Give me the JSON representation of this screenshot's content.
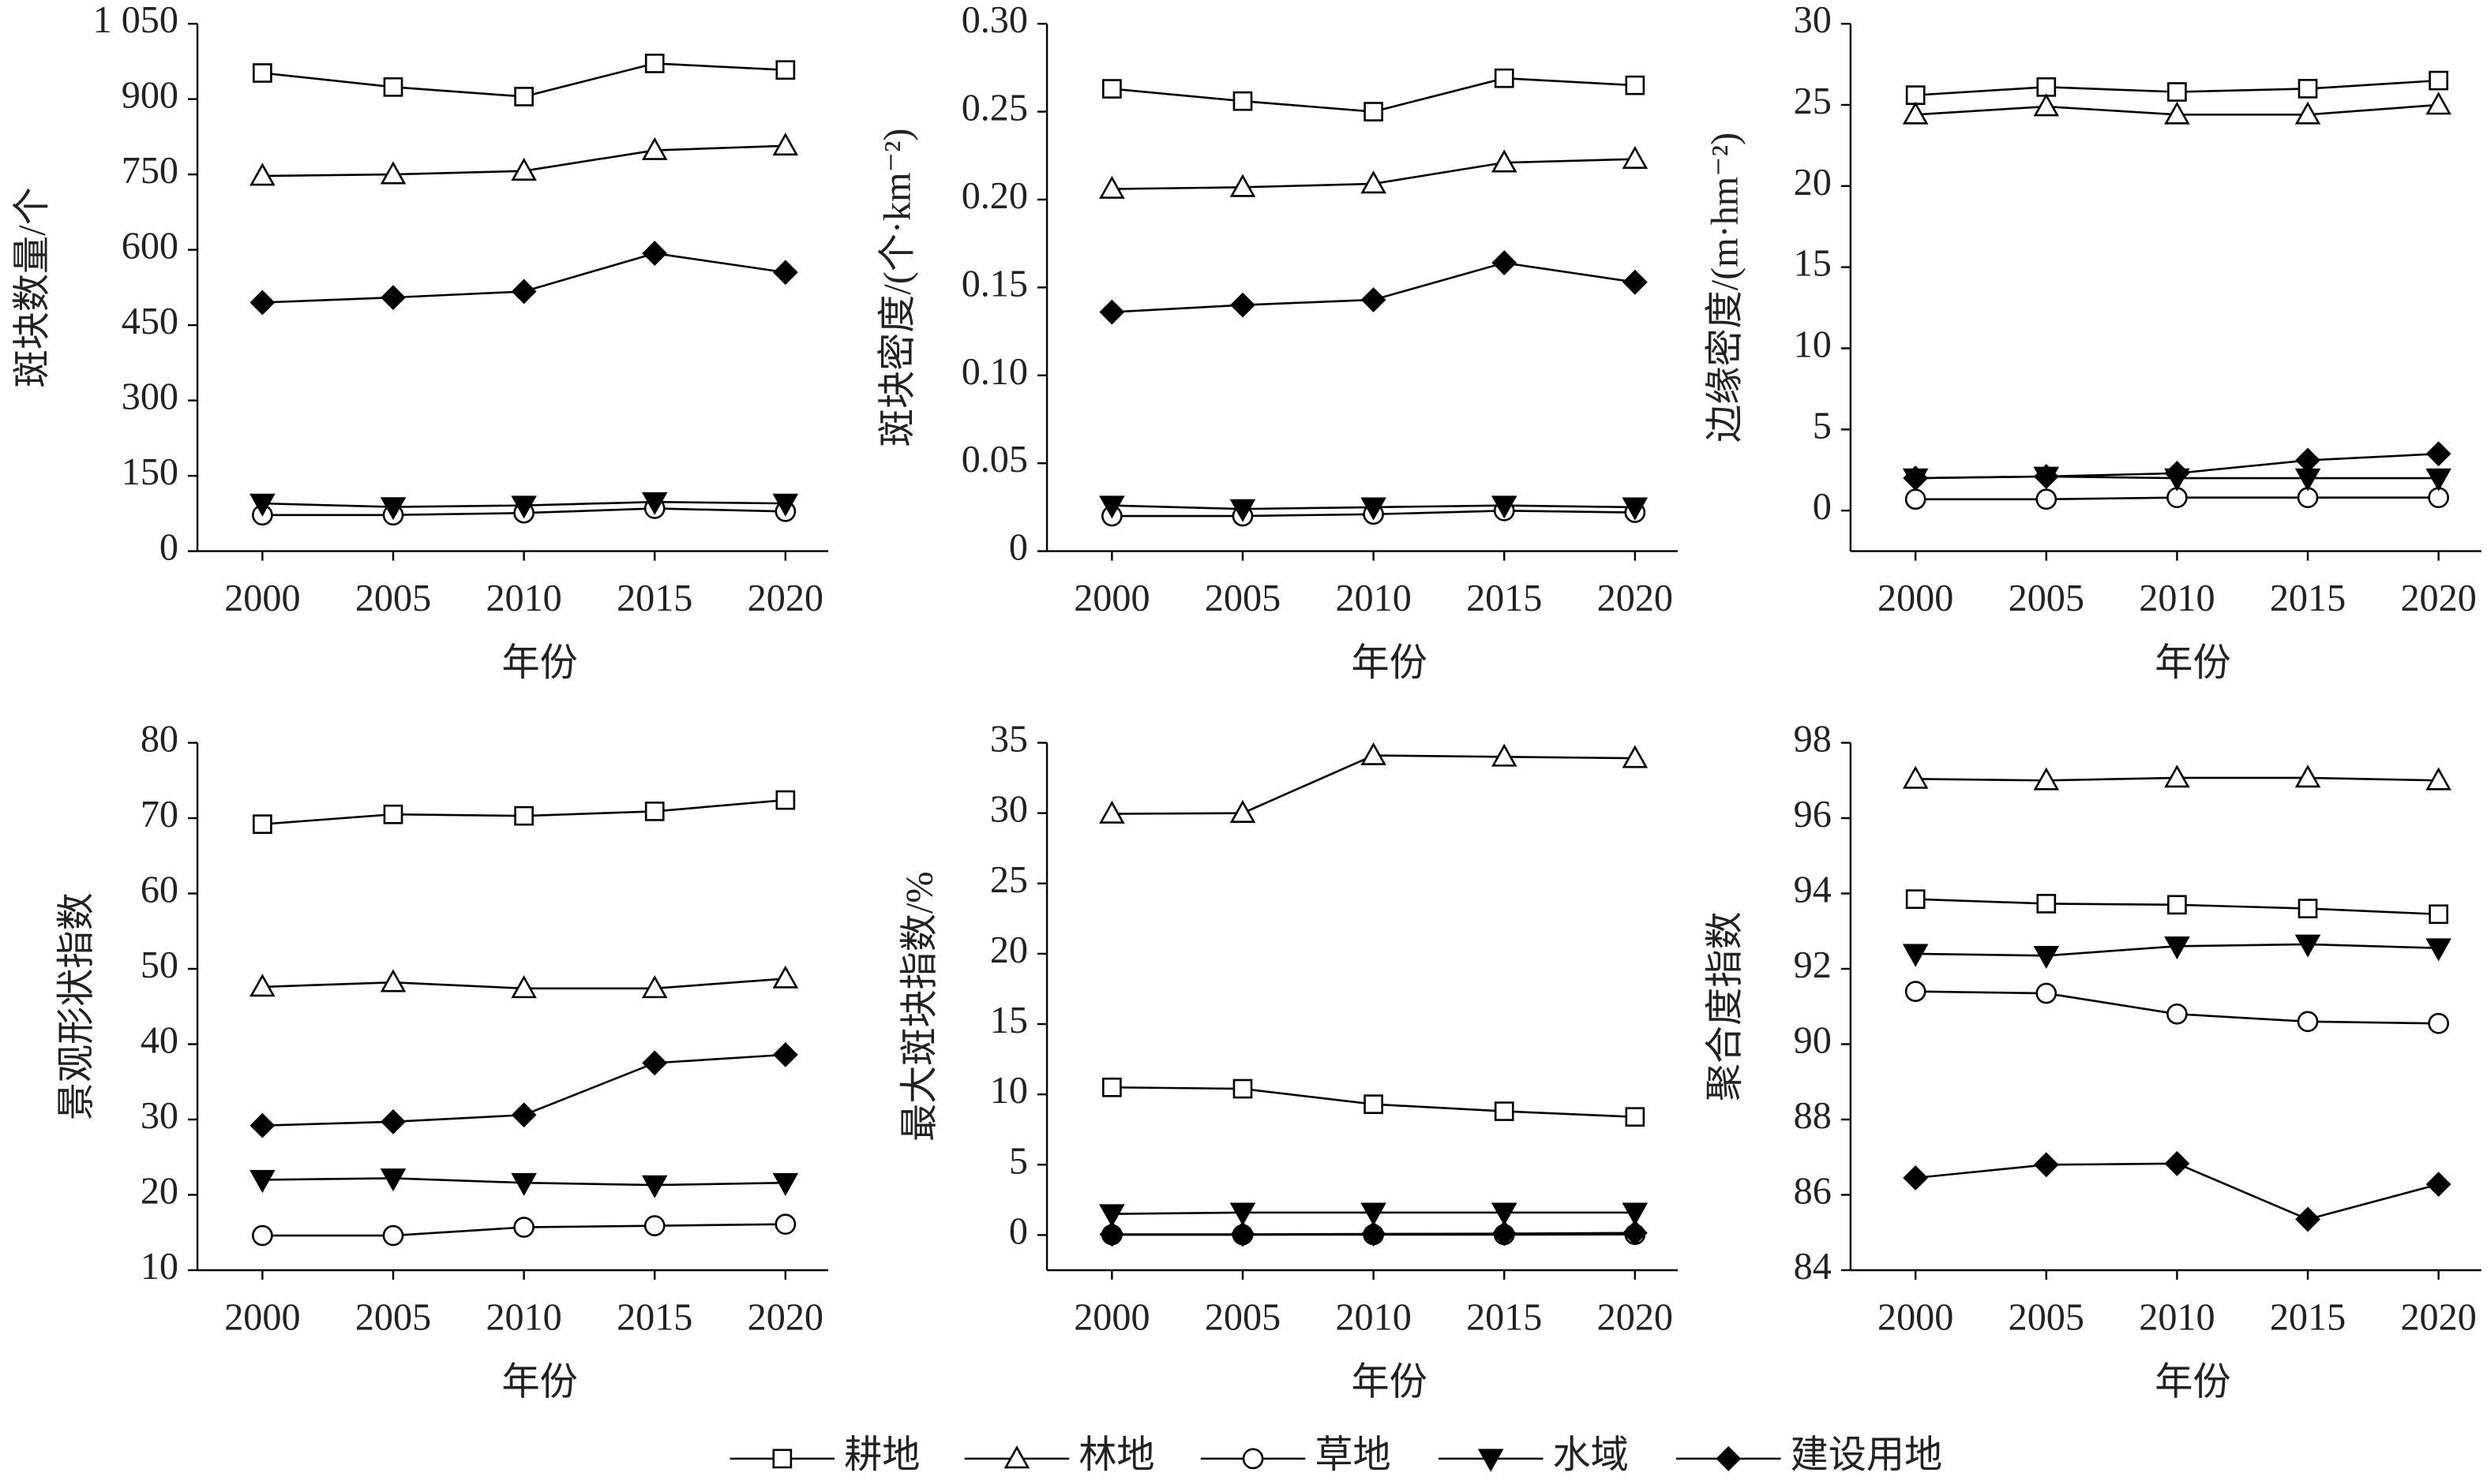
{
  "chart_data": [
    {
      "type": "line",
      "ylabel": "斑块数量/个",
      "xlabel": "年份",
      "categories": [
        "2000",
        "2005",
        "2010",
        "2015",
        "2020"
      ],
      "ylim": [
        0,
        1050
      ],
      "yticks": [
        0,
        150,
        300,
        450,
        600,
        750,
        900,
        {
          "value": 1050,
          "label": "1 050"
        }
      ],
      "series": [
        {
          "values": [
            952,
            924,
            905,
            971,
            958
          ]
        },
        {
          "values": [
            747,
            750,
            757,
            798,
            807
          ]
        },
        {
          "values": [
            72,
            72,
            76,
            85,
            79
          ]
        },
        {
          "values": [
            95,
            88,
            91,
            98,
            95
          ]
        },
        {
          "values": [
            495,
            505,
            517,
            593,
            555
          ]
        }
      ]
    },
    {
      "type": "line",
      "ylabel": "斑块密度/(个·km⁻²)",
      "xlabel": "年份",
      "categories": [
        "2000",
        "2005",
        "2010",
        "2015",
        "2020"
      ],
      "ylim": [
        0,
        0.3
      ],
      "yticks": [
        0,
        0.05,
        {
          "value": 0.1,
          "label": "0.10"
        },
        0.15,
        {
          "value": 0.2,
          "label": "0.20"
        },
        0.25,
        {
          "value": 0.3,
          "label": "0.30"
        }
      ],
      "series": [
        {
          "values": [
            0.263,
            0.256,
            0.25,
            0.269,
            0.265
          ]
        },
        {
          "values": [
            0.206,
            0.207,
            0.209,
            0.221,
            0.223
          ]
        },
        {
          "values": [
            0.02,
            0.02,
            0.021,
            0.023,
            0.022
          ]
        },
        {
          "values": [
            0.026,
            0.024,
            0.025,
            0.026,
            0.025
          ]
        },
        {
          "values": [
            0.136,
            0.14,
            0.143,
            0.164,
            0.153
          ]
        }
      ]
    },
    {
      "type": "line",
      "ylabel": "边缘密度/(m·hm⁻²)",
      "xlabel": "年份",
      "categories": [
        "2000",
        "2005",
        "2010",
        "2015",
        "2020"
      ],
      "ylim": [
        -2.5,
        30
      ],
      "yticks": [
        0,
        5,
        10,
        15,
        20,
        25,
        30
      ],
      "series": [
        {
          "values": [
            25.6,
            26.1,
            25.8,
            26.0,
            26.5
          ]
        },
        {
          "values": [
            24.4,
            24.9,
            24.4,
            24.4,
            25.0
          ]
        },
        {
          "values": [
            0.7,
            0.7,
            0.8,
            0.8,
            0.8
          ]
        },
        {
          "values": [
            2.0,
            2.1,
            2.0,
            2.0,
            2.0
          ]
        },
        {
          "values": [
            2.0,
            2.1,
            2.3,
            3.1,
            3.5
          ]
        }
      ]
    },
    {
      "type": "line",
      "ylabel": "景观形状指数",
      "xlabel": "年份",
      "categories": [
        "2000",
        "2005",
        "2010",
        "2015",
        "2020"
      ],
      "ylim": [
        10,
        80
      ],
      "yticks": [
        10,
        20,
        30,
        40,
        50,
        60,
        70,
        80
      ],
      "series": [
        {
          "values": [
            69.2,
            70.5,
            70.3,
            70.9,
            72.4
          ]
        },
        {
          "values": [
            47.6,
            48.2,
            47.4,
            47.4,
            48.7
          ]
        },
        {
          "values": [
            14.6,
            14.6,
            15.7,
            15.9,
            16.1
          ]
        },
        {
          "values": [
            22.0,
            22.2,
            21.6,
            21.3,
            21.6
          ]
        },
        {
          "values": [
            29.2,
            29.7,
            30.6,
            37.5,
            38.6
          ]
        }
      ]
    },
    {
      "type": "line",
      "ylabel": "最大斑块指数/%",
      "xlabel": "年份",
      "categories": [
        "2000",
        "2005",
        "2010",
        "2015",
        "2020"
      ],
      "ylim": [
        -2.5,
        35
      ],
      "yticks": [
        0,
        5,
        10,
        15,
        20,
        25,
        30,
        35
      ],
      "series": [
        {
          "values": [
            10.5,
            10.4,
            9.3,
            8.8,
            8.4
          ]
        },
        {
          "values": [
            29.95,
            30.0,
            34.1,
            34.0,
            33.9
          ]
        },
        {
          "values": [
            0.02,
            0.02,
            0.03,
            0.03,
            0.04
          ]
        },
        {
          "values": [
            1.5,
            1.6,
            1.6,
            1.6,
            1.6
          ]
        },
        {
          "values": [
            0.05,
            0.05,
            0.08,
            0.1,
            0.15
          ]
        }
      ]
    },
    {
      "type": "line",
      "ylabel": "聚合度指数",
      "xlabel": "年份",
      "categories": [
        "2000",
        "2005",
        "2010",
        "2015",
        "2020"
      ],
      "ylim": [
        84,
        98
      ],
      "yticks": [
        84,
        86,
        88,
        90,
        92,
        94,
        96,
        98
      ],
      "series": [
        {
          "values": [
            93.85,
            93.73,
            93.7,
            93.6,
            93.45
          ]
        },
        {
          "values": [
            97.04,
            97.0,
            97.07,
            97.07,
            97.0
          ]
        },
        {
          "values": [
            91.4,
            91.35,
            90.8,
            90.6,
            90.55
          ]
        },
        {
          "values": [
            92.4,
            92.35,
            92.6,
            92.65,
            92.55
          ]
        },
        {
          "values": [
            86.45,
            86.8,
            86.83,
            85.35,
            86.28
          ]
        }
      ]
    }
  ],
  "legend": {
    "color": "#000000",
    "entries": [
      {
        "name": "耕地",
        "marker": "square"
      },
      {
        "name": "林地",
        "marker": "triangle"
      },
      {
        "name": "草地",
        "marker": "circle"
      },
      {
        "name": "水域",
        "marker": "triangle-down-filled"
      },
      {
        "name": "建设用地",
        "marker": "diamond-filled"
      }
    ]
  }
}
